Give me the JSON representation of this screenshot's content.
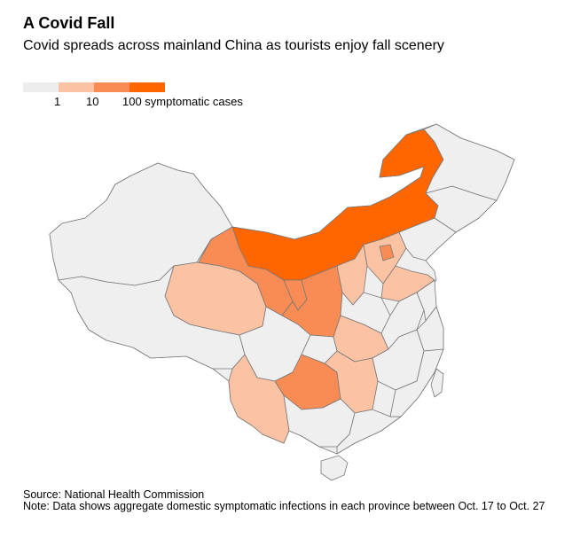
{
  "header": {
    "title": "A Covid Fall",
    "subtitle": "Covid spreads across mainland China as tourists enjoy fall scenery"
  },
  "legend": {
    "colors": [
      "#ededed",
      "#fbc2a4",
      "#f98c54",
      "#ff6600"
    ],
    "labels": [
      "1",
      "10",
      "100 symptomatic cases"
    ]
  },
  "map_colors": {
    "none": "#efefef",
    "low": "#fbc2a4",
    "mid": "#f98c54",
    "high": "#ff6600",
    "stroke": "#777777"
  },
  "footer": {
    "source": "Source: National Health Commission",
    "note": "Note: Data shows aggregate domestic symptomatic infections in each province between Oct. 17 to Oct. 27"
  }
}
